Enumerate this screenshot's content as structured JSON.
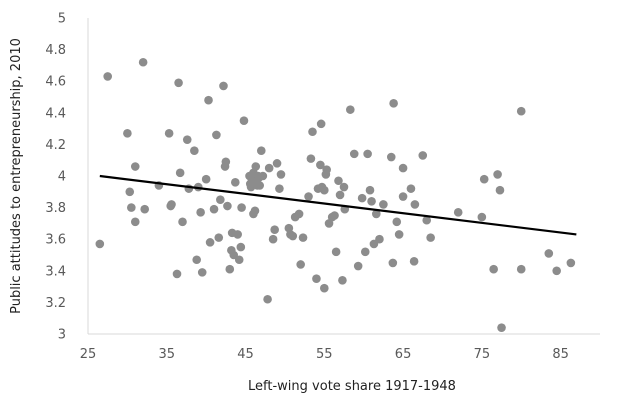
{
  "chart_data": {
    "type": "scatter",
    "title": "",
    "xlabel": "Left-wing vote share 1917-1948",
    "ylabel": "Public attitudes to entrepreneurship, 2010",
    "xlim": [
      25,
      90
    ],
    "ylim": [
      3,
      5
    ],
    "x_ticks": [
      25,
      35,
      45,
      55,
      65,
      75,
      85
    ],
    "x_tick_labels": [
      "25",
      "35",
      "45",
      "55",
      "65",
      "75",
      "85"
    ],
    "y_ticks": [
      3,
      3.2,
      3.4,
      3.6,
      3.8,
      4,
      4.2,
      4.4,
      4.6,
      4.8,
      5
    ],
    "y_tick_labels": [
      "3",
      "3.2",
      "3.4",
      "3.6",
      "3.8",
      "4",
      "4.2",
      "4.4",
      "4.6",
      "4.8",
      "5"
    ],
    "grid": false,
    "legend": "none",
    "point_color": "#8c8c8c",
    "trendline_color": "#000000",
    "trendline": {
      "x": [
        26.5,
        87
      ],
      "y": [
        4.0,
        3.63
      ]
    },
    "series": [
      {
        "points": [
          [
            26.5,
            3.57
          ],
          [
            27.5,
            4.63
          ],
          [
            30,
            4.27
          ],
          [
            30.3,
            3.9
          ],
          [
            30.5,
            3.8
          ],
          [
            31,
            3.71
          ],
          [
            31,
            4.06
          ],
          [
            32,
            4.72
          ],
          [
            32.2,
            3.79
          ],
          [
            34,
            3.94
          ],
          [
            35.3,
            4.27
          ],
          [
            35.5,
            3.81
          ],
          [
            35.6,
            3.82
          ],
          [
            36.3,
            3.38
          ],
          [
            36.5,
            4.59
          ],
          [
            36.7,
            4.02
          ],
          [
            37,
            3.71
          ],
          [
            37.6,
            4.23
          ],
          [
            37.8,
            3.92
          ],
          [
            38.5,
            4.16
          ],
          [
            38.8,
            3.47
          ],
          [
            39,
            3.93
          ],
          [
            39.3,
            3.77
          ],
          [
            39.5,
            3.39
          ],
          [
            40,
            3.98
          ],
          [
            40.3,
            4.48
          ],
          [
            40.5,
            3.58
          ],
          [
            41,
            3.79
          ],
          [
            41.3,
            4.26
          ],
          [
            41.6,
            3.61
          ],
          [
            41.8,
            3.85
          ],
          [
            42.2,
            4.57
          ],
          [
            42.4,
            4.06
          ],
          [
            42.5,
            4.09
          ],
          [
            42.7,
            3.81
          ],
          [
            43,
            3.41
          ],
          [
            43.2,
            3.53
          ],
          [
            43.3,
            3.64
          ],
          [
            43.5,
            3.5
          ],
          [
            43.7,
            3.96
          ],
          [
            44,
            3.63
          ],
          [
            44.2,
            3.47
          ],
          [
            44.4,
            3.55
          ],
          [
            44.5,
            3.8
          ],
          [
            44.8,
            4.35
          ],
          [
            45.5,
            4.0
          ],
          [
            45.6,
            3.95
          ],
          [
            45.7,
            3.93
          ],
          [
            45.8,
            3.98
          ],
          [
            46,
            3.76
          ],
          [
            46,
            4.02
          ],
          [
            46.2,
            3.78
          ],
          [
            46.3,
            4.06
          ],
          [
            46.4,
            3.95
          ],
          [
            46.5,
            3.94
          ],
          [
            46.6,
            4.0
          ],
          [
            46.7,
            3.99
          ],
          [
            46.8,
            3.94
          ],
          [
            47,
            4.16
          ],
          [
            47.2,
            4.0
          ],
          [
            47.8,
            3.22
          ],
          [
            48,
            4.05
          ],
          [
            48.5,
            3.6
          ],
          [
            48.7,
            3.66
          ],
          [
            49,
            4.08
          ],
          [
            49.3,
            3.92
          ],
          [
            49.5,
            4.01
          ],
          [
            50.5,
            3.67
          ],
          [
            50.7,
            3.63
          ],
          [
            51,
            3.62
          ],
          [
            51.3,
            3.74
          ],
          [
            51.8,
            3.76
          ],
          [
            52,
            3.44
          ],
          [
            52.3,
            3.61
          ],
          [
            53,
            3.87
          ],
          [
            53.3,
            4.11
          ],
          [
            53.5,
            4.28
          ],
          [
            54,
            3.35
          ],
          [
            54.2,
            3.92
          ],
          [
            54.5,
            4.07
          ],
          [
            54.6,
            4.33
          ],
          [
            54.7,
            3.93
          ],
          [
            55,
            3.29
          ],
          [
            55,
            3.91
          ],
          [
            55.2,
            4.01
          ],
          [
            55.3,
            4.04
          ],
          [
            55.6,
            3.7
          ],
          [
            56,
            3.74
          ],
          [
            56.3,
            3.75
          ],
          [
            56.5,
            3.52
          ],
          [
            56.8,
            3.97
          ],
          [
            57,
            3.88
          ],
          [
            57.3,
            3.34
          ],
          [
            57.5,
            3.93
          ],
          [
            57.6,
            3.79
          ],
          [
            58.3,
            4.42
          ],
          [
            58.8,
            4.14
          ],
          [
            59.3,
            3.43
          ],
          [
            59.8,
            3.86
          ],
          [
            60.2,
            3.52
          ],
          [
            60.5,
            4.14
          ],
          [
            60.8,
            3.91
          ],
          [
            61,
            3.84
          ],
          [
            61.3,
            3.57
          ],
          [
            61.6,
            3.76
          ],
          [
            62,
            3.6
          ],
          [
            62.5,
            3.82
          ],
          [
            63.5,
            4.12
          ],
          [
            63.7,
            3.45
          ],
          [
            63.8,
            4.46
          ],
          [
            64.2,
            3.71
          ],
          [
            64.5,
            3.63
          ],
          [
            65,
            3.87
          ],
          [
            65,
            4.05
          ],
          [
            66,
            3.92
          ],
          [
            66.4,
            3.46
          ],
          [
            66.5,
            3.82
          ],
          [
            67.5,
            4.13
          ],
          [
            68,
            3.72
          ],
          [
            68.5,
            3.61
          ],
          [
            72,
            3.77
          ],
          [
            75,
            3.74
          ],
          [
            75.3,
            3.98
          ],
          [
            76.5,
            3.41
          ],
          [
            77,
            4.01
          ],
          [
            77.3,
            3.91
          ],
          [
            77.5,
            3.04
          ],
          [
            80,
            3.41
          ],
          [
            80,
            4.41
          ],
          [
            83.5,
            3.51
          ],
          [
            84.5,
            3.4
          ],
          [
            86.3,
            3.45
          ]
        ]
      }
    ]
  }
}
